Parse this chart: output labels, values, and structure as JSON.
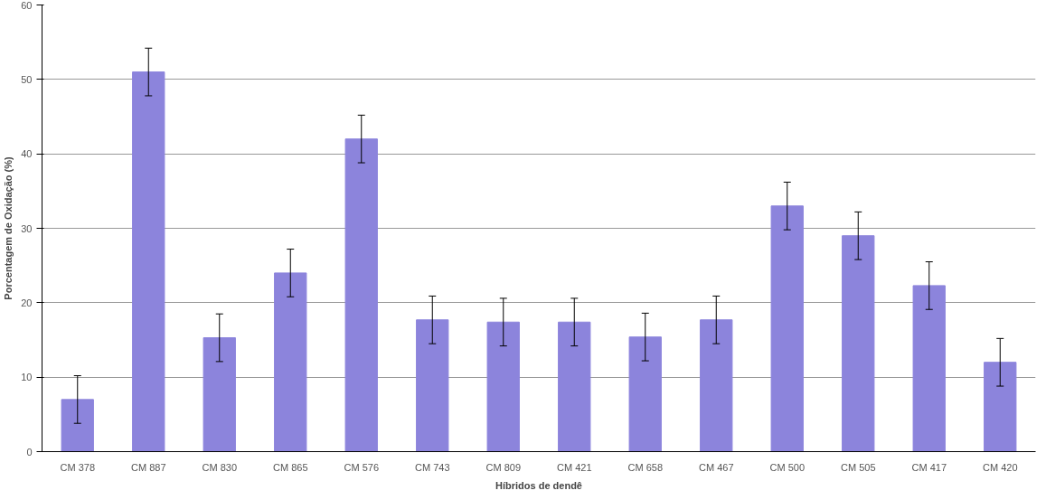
{
  "chart_data": {
    "type": "bar",
    "xlabel": "Híbridos de dendê",
    "ylabel": "Porcentagem de Oxidação (%)",
    "categories": [
      "CM 378",
      "CM 887",
      "CM 830",
      "CM 865",
      "CM 576",
      "CM 743",
      "CM 809",
      "CM 421",
      "CM 658",
      "CM 467",
      "CM 500",
      "CM 505",
      "CM 417",
      "CM 420"
    ],
    "values": [
      7,
      51,
      15.3,
      24,
      42,
      17.7,
      17.4,
      17.4,
      15.4,
      17.7,
      33,
      29,
      22.3,
      12
    ],
    "errors": [
      3.2,
      3.2,
      3.2,
      3.2,
      3.2,
      3.2,
      3.2,
      3.2,
      3.2,
      3.2,
      3.2,
      3.2,
      3.2,
      3.2
    ],
    "color": "#8c84dc",
    "ylim": [
      0,
      60
    ],
    "yticks": [
      0,
      10,
      20,
      30,
      40,
      50,
      60
    ],
    "grid": "y"
  }
}
